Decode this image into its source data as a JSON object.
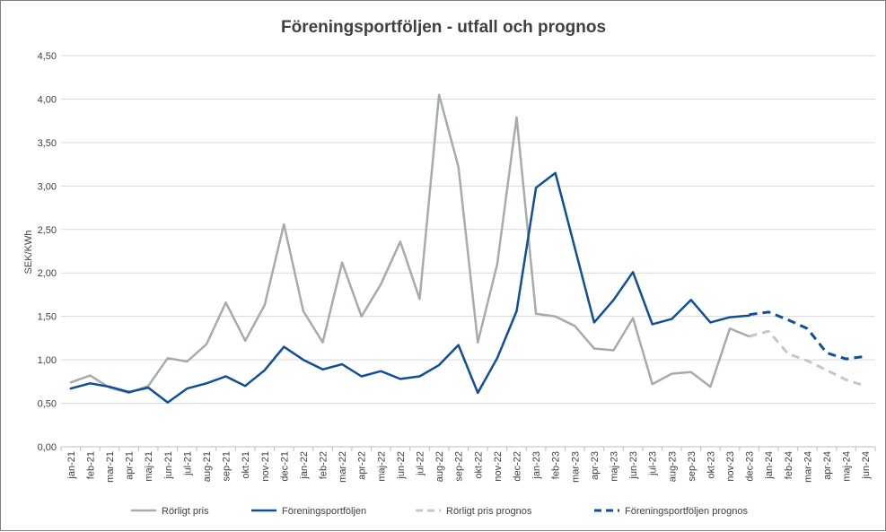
{
  "chart_data": {
    "type": "line",
    "title": "Föreningsportföljen - utfall och prognos",
    "ylabel": "SEK/KWh",
    "xlabel": "",
    "ylim": [
      0,
      4.5
    ],
    "ytick_labels": [
      "0,00",
      "0,50",
      "1,00",
      "1,50",
      "2,00",
      "2,50",
      "3,00",
      "3,50",
      "4,00",
      "4,50"
    ],
    "grid": "horizontal",
    "legend_position": "bottom",
    "categories": [
      "jan-21",
      "feb-21",
      "mar-21",
      "apr-21",
      "maj-21",
      "jun-21",
      "jul-21",
      "aug-21",
      "sep-21",
      "okt-21",
      "nov-21",
      "dec-21",
      "jan-22",
      "feb-22",
      "mar-22",
      "apr-22",
      "maj-22",
      "jun-22",
      "jul-22",
      "aug-22",
      "sep-22",
      "okt-22",
      "nov-22",
      "dec-22",
      "jan-23",
      "feb-23",
      "mar-23",
      "apr-23",
      "maj-23",
      "jun-23",
      "jul-23",
      "aug-23",
      "sep-23",
      "okt-23",
      "nov-23",
      "dec-23",
      "jan-24",
      "feb-24",
      "mar-24",
      "apr-24",
      "maj-24",
      "jun-24"
    ],
    "series": [
      {
        "name": "Rörligt pris",
        "color": "#a6abb0",
        "style": "solid",
        "values": [
          0.74,
          0.82,
          0.68,
          0.62,
          0.7,
          1.02,
          0.98,
          1.18,
          1.66,
          1.22,
          1.63,
          2.56,
          1.56,
          1.2,
          2.12,
          1.5,
          1.87,
          2.36,
          1.7,
          4.05,
          3.22,
          1.2,
          2.1,
          3.79,
          1.53,
          1.5,
          1.39,
          1.13,
          1.11,
          1.48,
          0.72,
          0.84,
          0.86,
          0.69,
          1.36,
          1.27,
          null,
          null,
          null,
          null,
          null,
          null
        ]
      },
      {
        "name": "Föreningsportföljen",
        "color": "#0f4f98",
        "style": "solid",
        "values": [
          0.67,
          0.73,
          0.69,
          0.63,
          0.68,
          0.51,
          0.67,
          0.73,
          0.81,
          0.7,
          0.88,
          1.15,
          1.0,
          0.89,
          0.95,
          0.81,
          0.87,
          0.78,
          0.81,
          0.94,
          1.17,
          0.62,
          1.02,
          1.56,
          2.98,
          3.15,
          2.29,
          1.43,
          1.69,
          2.01,
          1.41,
          1.47,
          1.69,
          1.43,
          1.49,
          1.51,
          null,
          null,
          null,
          null,
          null,
          null
        ]
      },
      {
        "name": "Rörligt pris prognos",
        "color": "#c4c8cc",
        "style": "dashed",
        "values": [
          null,
          null,
          null,
          null,
          null,
          null,
          null,
          null,
          null,
          null,
          null,
          null,
          null,
          null,
          null,
          null,
          null,
          null,
          null,
          null,
          null,
          null,
          null,
          null,
          null,
          null,
          null,
          null,
          null,
          null,
          null,
          null,
          null,
          null,
          null,
          1.27,
          1.33,
          1.07,
          0.99,
          0.88,
          0.77,
          0.7
        ]
      },
      {
        "name": "Föreningsportföljen prognos",
        "color": "#0f4f98",
        "style": "dashed",
        "values": [
          null,
          null,
          null,
          null,
          null,
          null,
          null,
          null,
          null,
          null,
          null,
          null,
          null,
          null,
          null,
          null,
          null,
          null,
          null,
          null,
          null,
          null,
          null,
          null,
          null,
          null,
          null,
          null,
          null,
          null,
          null,
          null,
          null,
          null,
          null,
          1.52,
          1.55,
          1.46,
          1.36,
          1.08,
          1.01,
          1.04
        ]
      }
    ]
  }
}
